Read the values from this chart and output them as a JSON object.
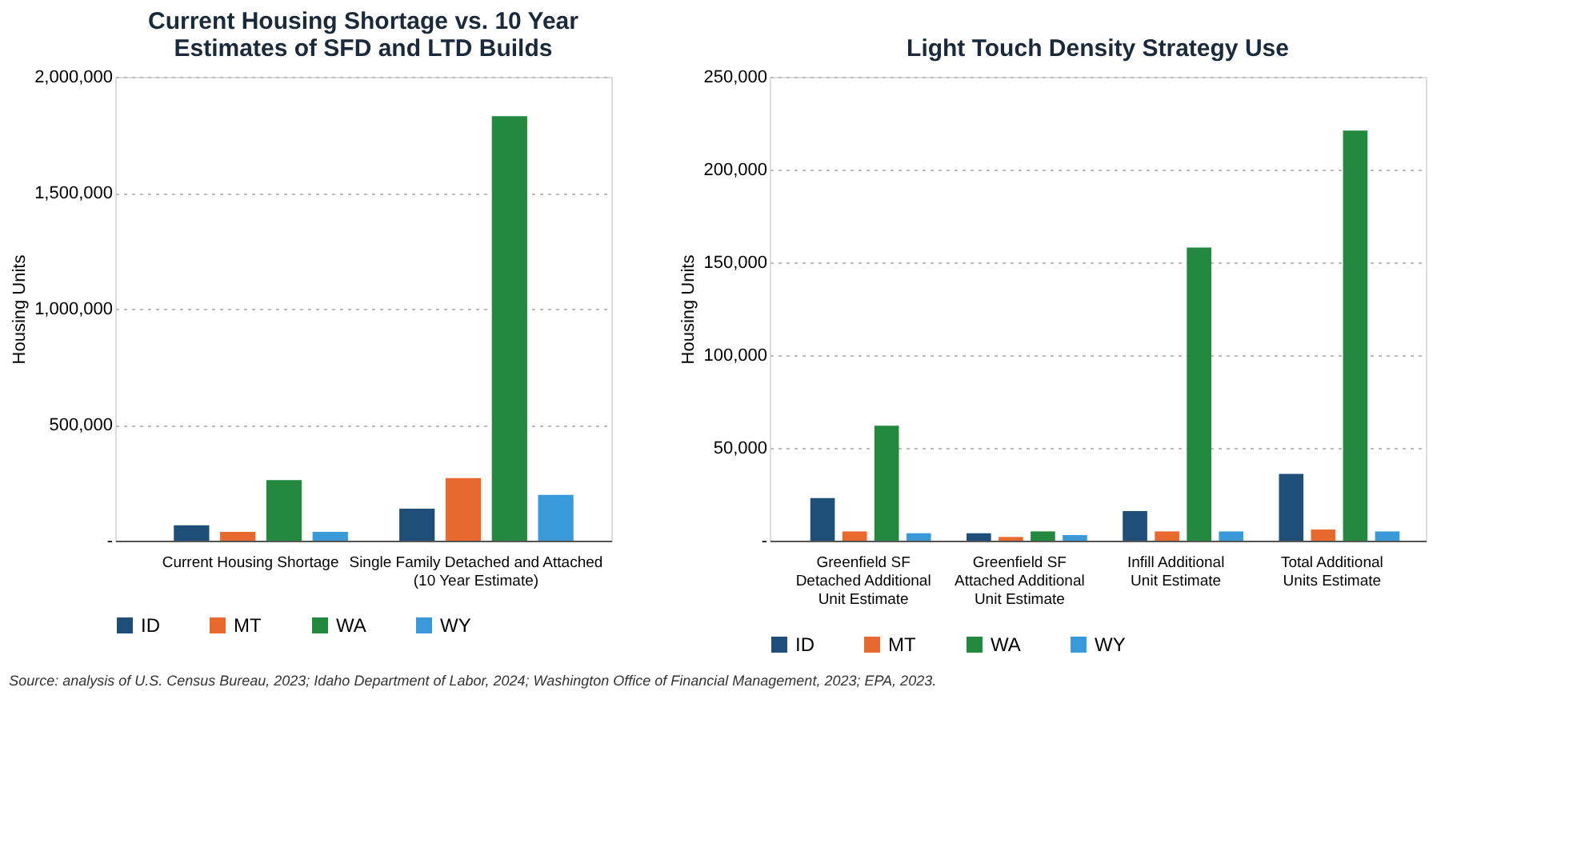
{
  "chart_data": [
    {
      "type": "bar",
      "title": "Current Housing Shortage vs. 10 Year Estimates of SFD and LTD Builds",
      "ylabel": "Housing Units",
      "categories": [
        "Current Housing Shortage",
        "Single Family Detached and Attached (10 Year Estimate)"
      ],
      "series": [
        {
          "name": "ID",
          "color": "#1f4e79",
          "values": [
            66000,
            138000
          ]
        },
        {
          "name": "MT",
          "color": "#e8692d",
          "values": [
            38000,
            270000
          ]
        },
        {
          "name": "WA",
          "color": "#23893f",
          "values": [
            261000,
            1830000
          ]
        },
        {
          "name": "WY",
          "color": "#3a9ad9",
          "values": [
            38000,
            197000
          ]
        }
      ],
      "ylim": [
        0,
        2000000
      ],
      "yticks": [
        {
          "value": 0,
          "label": "-"
        },
        {
          "value": 500000,
          "label": "500,000"
        },
        {
          "value": 1000000,
          "label": "1,000,000"
        },
        {
          "value": 1500000,
          "label": "1,500,000"
        },
        {
          "value": 2000000,
          "label": "2,000,000"
        }
      ],
      "grid": "y",
      "legend": "bottom",
      "annotations": [
        "Source: analysis of U.S. Census Bureau, 2023; Idaho Department of Labor, 2024; Washington Office of Financial Management, 2023; EPA, 2023."
      ]
    },
    {
      "type": "bar",
      "title": "Light Touch Density Strategy Use",
      "ylabel": "Housing Units",
      "categories": [
        "Greenfield SF Detached Additional Unit Estimate",
        "Greenfield SF Attached Additional Unit Estimate",
        "Infill Additional Unit Estimate",
        "Total Additional Units Estimate"
      ],
      "series": [
        {
          "name": "ID",
          "color": "#1f4e79",
          "values": [
            23000,
            4000,
            16000,
            36000
          ]
        },
        {
          "name": "MT",
          "color": "#e8692d",
          "values": [
            5000,
            2000,
            5000,
            6000
          ]
        },
        {
          "name": "WA",
          "color": "#23893f",
          "values": [
            62000,
            5000,
            158000,
            221000
          ]
        },
        {
          "name": "WY",
          "color": "#3a9ad9",
          "values": [
            4000,
            3000,
            5000,
            5000
          ]
        }
      ],
      "ylim": [
        0,
        250000
      ],
      "yticks": [
        {
          "value": 0,
          "label": "-"
        },
        {
          "value": 50000,
          "label": "50,000"
        },
        {
          "value": 100000,
          "label": "100,000"
        },
        {
          "value": 150000,
          "label": "150,000"
        },
        {
          "value": 200000,
          "label": "200,000"
        },
        {
          "value": 250000,
          "label": "250,000"
        }
      ],
      "grid": "y",
      "legend": "bottom"
    }
  ]
}
